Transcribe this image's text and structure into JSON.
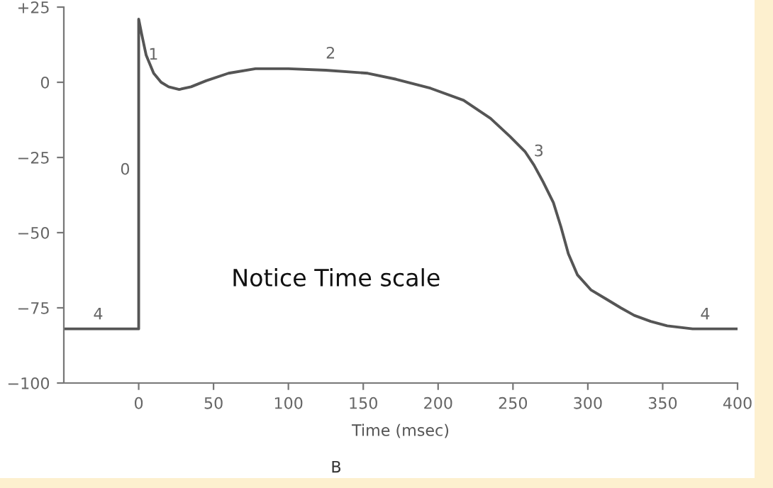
{
  "chart_data": {
    "type": "line",
    "xlabel": "Time (msec)",
    "x": [
      -50,
      0,
      0,
      2,
      5,
      10,
      15,
      20,
      27,
      35,
      45,
      60,
      78,
      100,
      125,
      153,
      172,
      195,
      217,
      235,
      248,
      258,
      264,
      270,
      277,
      282,
      287,
      293,
      302,
      312,
      322,
      331,
      342,
      353,
      370,
      400
    ],
    "values": [
      -82,
      -82,
      21,
      16,
      9,
      3,
      0,
      -1.5,
      -2.4,
      -1.5,
      0.5,
      3,
      4.5,
      4.5,
      4,
      3,
      1,
      -2,
      -6,
      -12,
      -18,
      -23,
      -27.5,
      -33,
      -40,
      -48,
      -57,
      -64,
      -69,
      -72,
      -75,
      -77.5,
      -79.5,
      -81,
      -82,
      -82
    ],
    "color": "#555555",
    "xlim": [
      -50,
      400
    ],
    "xticks": [
      0,
      50,
      100,
      150,
      200,
      250,
      300,
      350,
      400
    ],
    "ylim": [
      -100,
      25
    ],
    "yticks": [
      {
        "value": -100,
        "label": "−100"
      },
      {
        "value": -75,
        "label": "−75"
      },
      {
        "value": -50,
        "label": "−50"
      },
      {
        "value": -25,
        "label": "−25"
      },
      0,
      {
        "value": 25,
        "label": "+25"
      }
    ],
    "annotations": [
      "0",
      "1",
      "2",
      "3",
      "4",
      "4",
      "Notice Time scale",
      "B"
    ],
    "grid": false,
    "legend": false,
    "marker": "none",
    "line_style": "solid"
  }
}
